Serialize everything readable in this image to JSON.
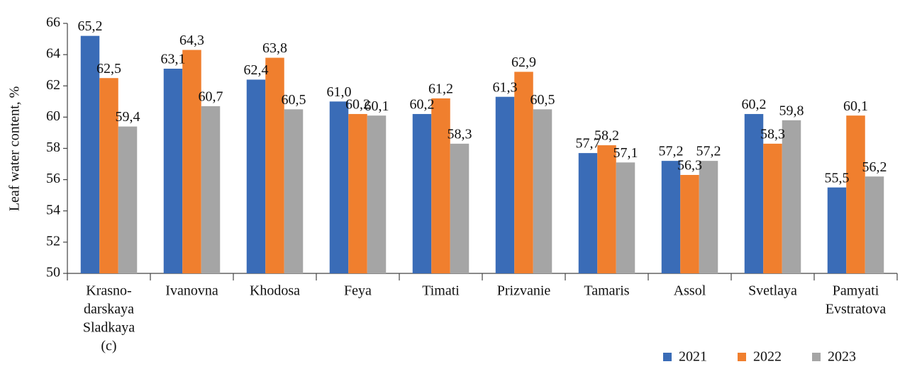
{
  "chart_data": {
    "type": "bar",
    "y_label": "Leaf water content, %",
    "categories": [
      [
        "Krasno-",
        "darskaya",
        "Sladkaya",
        "(c)"
      ],
      [
        "Ivanovna"
      ],
      [
        "Khodosa"
      ],
      [
        "Feya"
      ],
      [
        "Timati"
      ],
      [
        "Prizvanie"
      ],
      [
        "Tamaris"
      ],
      [
        "Assol"
      ],
      [
        "Svetlaya"
      ],
      [
        "Pamyati",
        "Evstratova"
      ]
    ],
    "series": [
      {
        "name": "2021",
        "color": "#3a6cb7",
        "values": [
          65.2,
          63.1,
          62.4,
          61.0,
          60.2,
          61.3,
          57.7,
          57.2,
          60.2,
          55.5
        ],
        "value_labels": [
          "65,2",
          "63,1",
          "62,4",
          "61,0",
          "60,2",
          "61,3",
          "57,7",
          "57,2",
          "60,2",
          "55,5"
        ]
      },
      {
        "name": "2022",
        "color": "#f07f2e",
        "values": [
          62.5,
          64.3,
          63.8,
          60.2,
          61.2,
          62.9,
          58.2,
          56.3,
          58.3,
          60.1
        ],
        "value_labels": [
          "62,5",
          "64,3",
          "63,8",
          "60,2",
          "61,2",
          "62,9",
          "58,2",
          "56,3",
          "58,3",
          "60,1"
        ]
      },
      {
        "name": "2023",
        "color": "#a5a5a5",
        "values": [
          59.4,
          60.7,
          60.5,
          60.1,
          58.3,
          60.5,
          57.1,
          57.2,
          59.8,
          56.2
        ],
        "value_labels": [
          "59,4",
          "60,7",
          "60,5",
          "60,1",
          "58,3",
          "60,5",
          "57,1",
          "57,2",
          "59,8",
          "56,2"
        ]
      }
    ],
    "ylim": [
      50,
      66
    ],
    "yticks": [
      50,
      52,
      54,
      56,
      58,
      60,
      62,
      64,
      66
    ],
    "grid": false,
    "legend": "bottom-right"
  }
}
